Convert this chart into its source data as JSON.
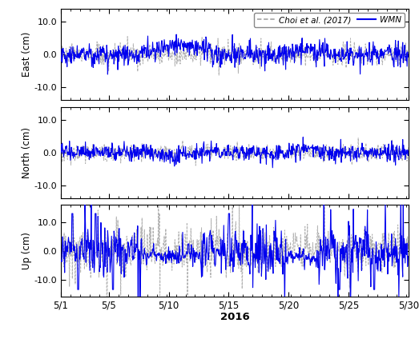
{
  "title_xlabel": "2016",
  "ylabel_east": "East (cm)",
  "ylabel_north": "North (cm)",
  "ylabel_up": "Up (cm)",
  "legend_choi": "Choi et al. (2017)",
  "legend_wmn": "WMN",
  "color_choi": "#aaaaaa",
  "color_wmn": "#0000EE",
  "ylim_east": [
    -14,
    14
  ],
  "ylim_north": [
    -14,
    14
  ],
  "ylim_up": [
    -16,
    16
  ],
  "yticks_east": [
    -10.0,
    0.0,
    10.0
  ],
  "yticks_north": [
    -10.0,
    0.0,
    10.0
  ],
  "yticks_up": [
    -10.0,
    0.0,
    10.0
  ],
  "xtick_labels": [
    "5/1",
    "5/5",
    "5/10",
    "5/15",
    "5/20",
    "5/25",
    "5/30"
  ],
  "xtick_positions": [
    1,
    5,
    10,
    15,
    20,
    25,
    30
  ],
  "seed_east_choi": 10,
  "seed_north_choi": 20,
  "seed_up_choi": 30,
  "seed_east_wmn": 110,
  "seed_north_wmn": 120,
  "seed_up_wmn": 130
}
